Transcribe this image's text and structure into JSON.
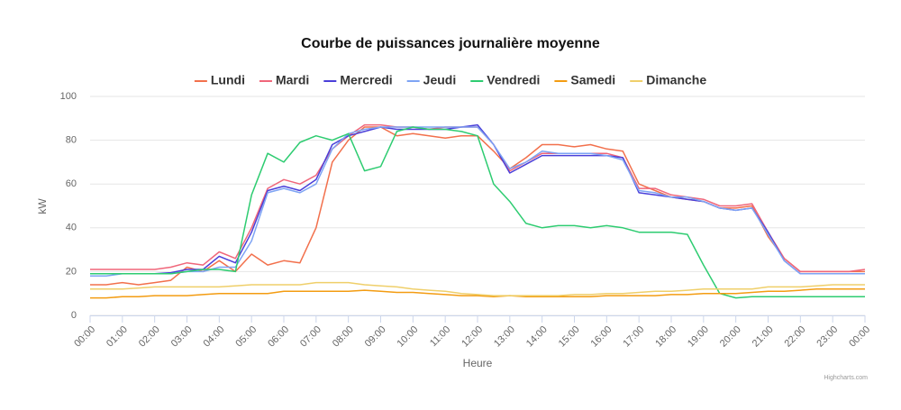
{
  "chart_data": {
    "type": "line",
    "title": "Courbe de puissances journalière moyenne",
    "x_label": "Heure",
    "y_label": "kW",
    "credit": "Highcharts.com",
    "categories": [
      "00:00",
      null,
      "01:00",
      null,
      "02:00",
      null,
      "03:00",
      null,
      "04:00",
      null,
      "05:00",
      null,
      "06:00",
      null,
      "07:00",
      null,
      "08:00",
      null,
      "09:00",
      null,
      "10:00",
      null,
      "11:00",
      null,
      "12:00",
      null,
      "13:00",
      null,
      "14:00",
      null,
      "15:00",
      null,
      "16:00",
      null,
      "17:00",
      null,
      "18:00",
      null,
      "19:00",
      null,
      "20:00",
      null,
      "21:00",
      null,
      "22:00",
      null,
      "23:00",
      null,
      "00:00"
    ],
    "ylim": [
      0,
      100
    ],
    "yticks": [
      0,
      20,
      40,
      60,
      80,
      100
    ],
    "grid": true,
    "series": [
      {
        "name": "Lundi",
        "color": "#f2704c",
        "values": [
          14,
          14,
          15,
          14,
          15,
          16,
          22,
          20,
          25,
          20,
          28,
          23,
          25,
          24,
          40,
          70,
          80,
          86,
          86,
          82,
          83,
          82,
          81,
          82,
          82,
          75,
          67,
          72,
          78,
          78,
          77,
          78,
          76,
          75,
          60,
          57,
          54,
          53,
          52,
          49,
          49,
          50,
          36,
          26,
          20,
          20,
          20,
          20,
          20
        ]
      },
      {
        "name": "Mardi",
        "color": "#f0667a",
        "values": [
          21,
          21,
          21,
          21,
          21,
          22,
          24,
          23,
          29,
          26,
          40,
          58,
          62,
          60,
          64,
          76,
          82,
          87,
          87,
          86,
          86,
          85,
          86,
          86,
          86,
          78,
          66,
          70,
          74,
          74,
          74,
          74,
          74,
          72,
          58,
          58,
          55,
          54,
          53,
          50,
          50,
          51,
          38,
          26,
          20,
          20,
          20,
          20,
          21
        ]
      },
      {
        "name": "Mercredi",
        "color": "#4a3fd9",
        "values": [
          19,
          19,
          19,
          19,
          19,
          19.5,
          21,
          21,
          27,
          24,
          38,
          57,
          59,
          57,
          62,
          78,
          82,
          84,
          86,
          85,
          85,
          85,
          85,
          86,
          87,
          78,
          65,
          69,
          73,
          73,
          73,
          73,
          73,
          72,
          56,
          55,
          54,
          53,
          52,
          49,
          48,
          49,
          38,
          25,
          19,
          19,
          19,
          19,
          19
        ]
      },
      {
        "name": "Jeudi",
        "color": "#7ea4f4",
        "values": [
          18,
          18,
          19,
          19,
          19,
          19,
          20,
          20,
          22,
          22,
          34,
          56,
          58,
          56,
          60,
          76,
          83,
          85,
          86,
          86,
          86,
          86,
          86,
          86,
          86,
          78,
          67,
          70,
          75,
          74,
          74,
          74,
          73,
          71,
          57,
          56,
          54,
          54,
          52,
          49,
          48,
          49,
          37,
          25,
          19,
          19,
          19,
          19,
          19
        ]
      },
      {
        "name": "Vendredi",
        "color": "#2ecc71",
        "values": [
          19,
          19,
          19,
          19,
          19,
          19,
          20,
          21,
          21,
          20,
          55,
          74,
          70,
          79,
          82,
          80,
          83,
          66,
          68,
          84,
          86,
          85,
          85,
          84,
          82,
          60,
          52,
          42,
          40,
          41,
          41,
          40,
          41,
          40,
          38,
          38,
          38,
          37,
          23,
          10,
          8,
          8.5,
          8.5,
          8.5,
          8.5,
          8.5,
          8.5,
          8.5,
          8.5
        ]
      },
      {
        "name": "Samedi",
        "color": "#f39c12",
        "values": [
          8,
          8,
          8.5,
          8.5,
          9,
          9,
          9,
          9.5,
          10,
          10,
          10,
          10,
          11,
          11,
          11,
          11,
          11,
          11.5,
          11,
          10.5,
          10.5,
          10,
          9.5,
          9,
          9,
          8.5,
          9,
          8.5,
          8.5,
          8.5,
          8.5,
          8.5,
          9,
          9,
          9,
          9,
          9.5,
          9.5,
          10,
          10,
          10,
          10.5,
          11,
          11,
          11.5,
          12,
          12,
          12,
          12
        ]
      },
      {
        "name": "Dimanche",
        "color": "#efcf6a",
        "values": [
          12,
          12,
          12,
          12.5,
          13,
          13,
          13,
          13,
          13,
          13.5,
          14,
          14,
          14,
          14,
          15,
          15,
          15,
          14,
          13.5,
          13,
          12,
          11.5,
          11,
          10,
          9.5,
          9,
          9,
          9,
          9,
          9,
          9.5,
          9.5,
          10,
          10,
          10.5,
          11,
          11,
          11.5,
          12,
          12,
          12,
          12,
          13,
          13,
          13,
          13.5,
          14,
          14,
          14
        ]
      }
    ]
  }
}
